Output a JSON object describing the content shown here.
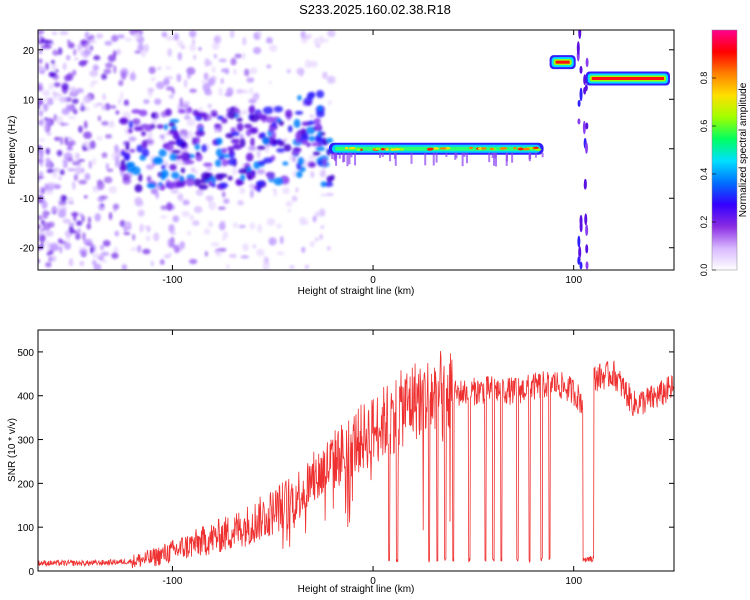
{
  "title": "S233.2025.160.02.38.R18",
  "chart_data": [
    {
      "type": "heatmap",
      "xlabel": "Height of straight line (km)",
      "ylabel": "Frequency (Hz)",
      "xlim": [
        -167,
        150
      ],
      "ylim": [
        -24.5,
        24
      ],
      "xticks": [
        -100,
        0,
        100
      ],
      "yticks": [
        -20,
        -10,
        0,
        10,
        20
      ],
      "colorbar": {
        "label": "Normalized spectral amplitude",
        "range": [
          0.0,
          1.0
        ],
        "ticks": [
          "0.0",
          "0.2",
          "0.4",
          "0.6",
          "0.8"
        ],
        "colors": [
          "#ffffff",
          "#d8b8ff",
          "#8a2be2",
          "#3300ff",
          "#0070ff",
          "#00e0ff",
          "#00ff60",
          "#a0ff00",
          "#ffe000",
          "#ff8000",
          "#ff0000",
          "#ff0090"
        ]
      },
      "features": [
        {
          "name": "scattered noise",
          "x": [
            -167,
            -20
          ],
          "freq": [
            -24,
            24
          ]
        },
        {
          "name": "main line",
          "x": [
            -22,
            85
          ],
          "freq": 0
        },
        {
          "name": "rising segment",
          "x": [
            -50,
            -25
          ],
          "freq": [
            0,
            5
          ]
        },
        {
          "name": "upper line 1",
          "x": [
            88,
            101
          ],
          "freq": 17.5
        },
        {
          "name": "upper line 2",
          "x": [
            106,
            148
          ],
          "freq": 14.2
        }
      ]
    },
    {
      "type": "line",
      "xlabel": "Height of straight line (km)",
      "ylabel": "SNR (10 * v/v)",
      "xlim": [
        -167,
        150
      ],
      "ylim": [
        0,
        550
      ],
      "xticks": [
        -100,
        0,
        100
      ],
      "yticks": [
        0,
        100,
        200,
        300,
        400,
        500
      ],
      "color": "#ef3030",
      "x": [
        -167,
        -140,
        -120,
        -110,
        -100,
        -90,
        -80,
        -70,
        -60,
        -50,
        -40,
        -30,
        -20,
        -10,
        0,
        10,
        20,
        30,
        40,
        50,
        60,
        70,
        80,
        90,
        100,
        105,
        110,
        120,
        130,
        140,
        150
      ],
      "y": [
        18,
        18,
        22,
        30,
        45,
        60,
        75,
        90,
        110,
        135,
        165,
        205,
        250,
        290,
        320,
        355,
        390,
        400,
        405,
        410,
        415,
        410,
        420,
        430,
        410,
        380,
        440,
        450,
        380,
        395,
        420
      ],
      "dropouts": [
        8,
        12,
        28,
        32,
        36,
        40,
        48,
        56,
        60,
        64,
        72,
        78,
        84,
        88,
        105,
        108
      ]
    }
  ]
}
